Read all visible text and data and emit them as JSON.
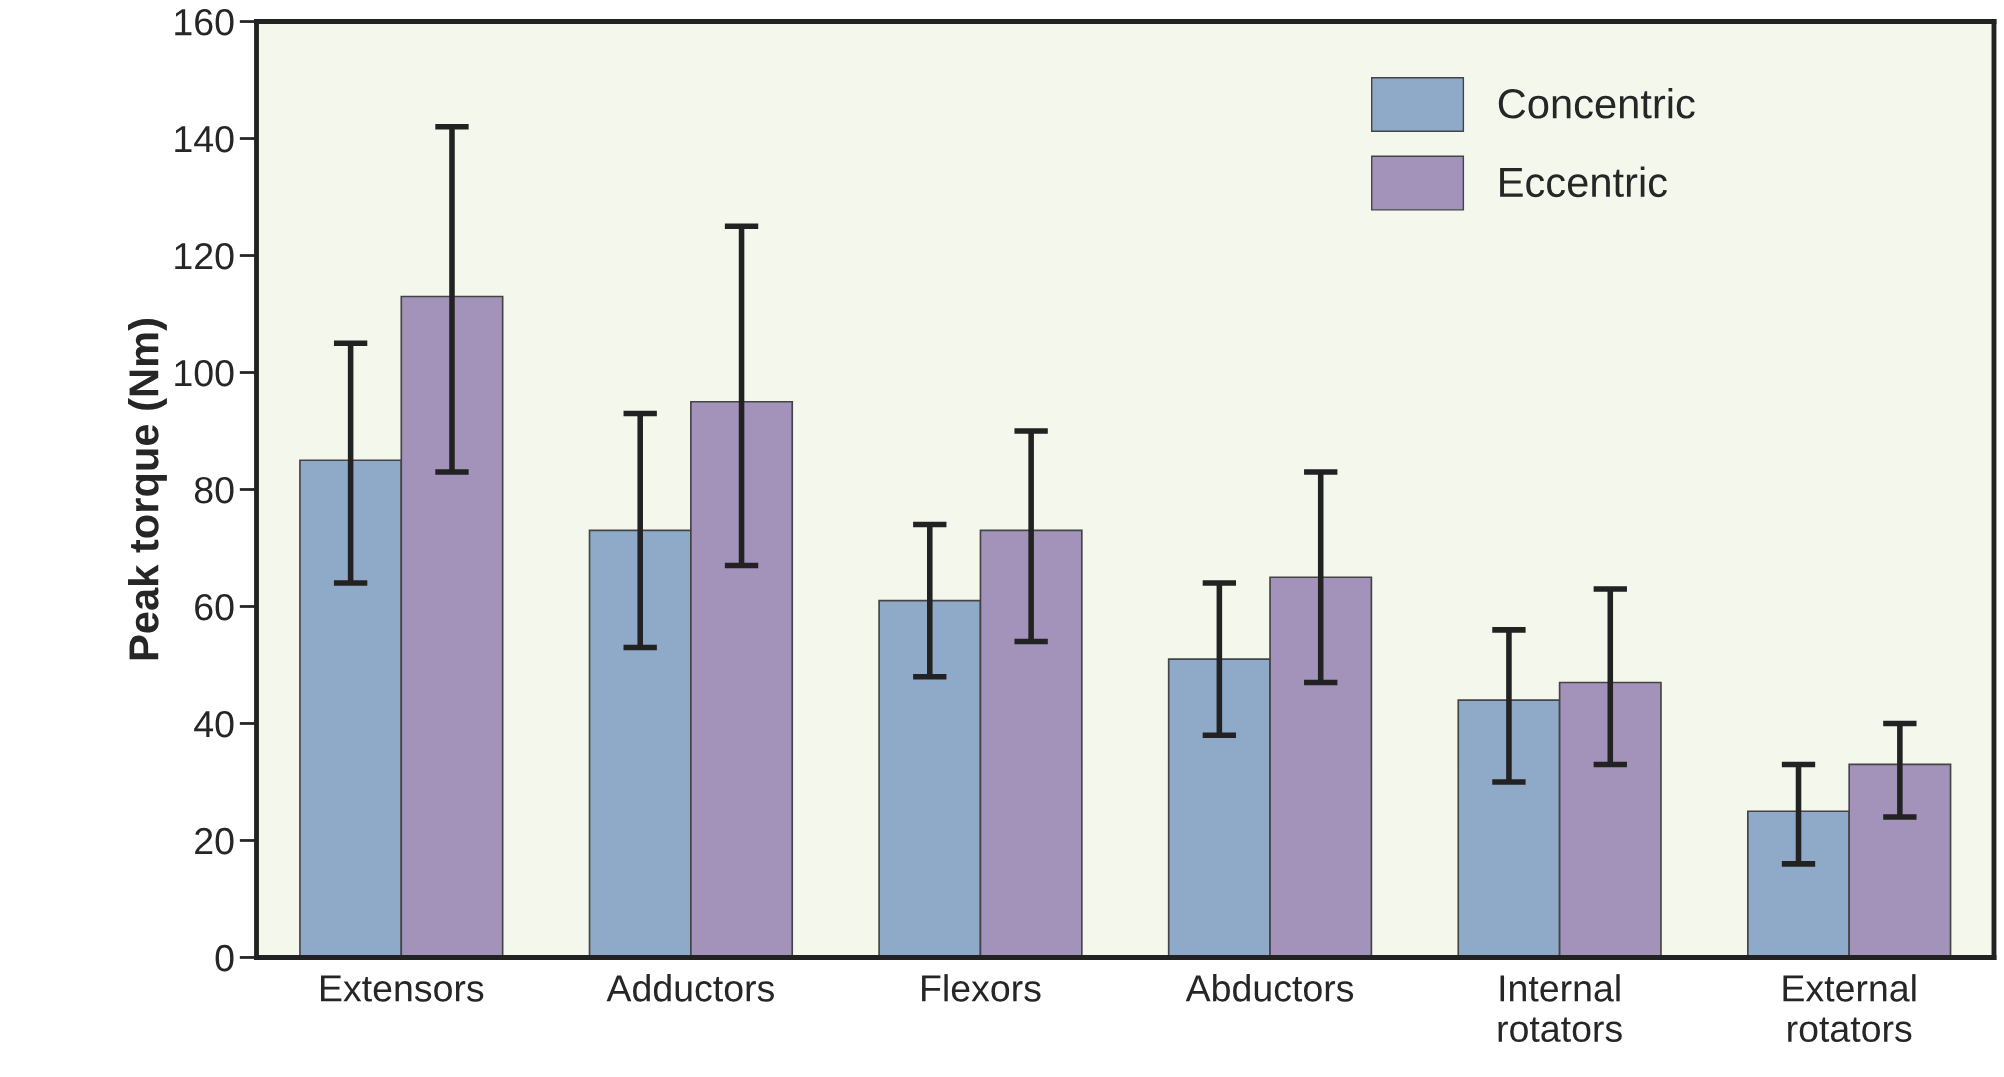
{
  "chart_data": {
    "type": "bar",
    "ylabel": "Peak torque (Nm)",
    "categories": [
      "Extensors",
      "Adductors",
      "Flexors",
      "Abductors",
      "Internal\nrotators",
      "External\nrotators"
    ],
    "series": [
      {
        "name": "Concentric",
        "color": "#8eaac8",
        "values": [
          85,
          73,
          61,
          51,
          44,
          25
        ],
        "errors": [
          [
            64,
            105
          ],
          [
            53,
            93
          ],
          [
            48,
            74
          ],
          [
            38,
            64
          ],
          [
            30,
            56
          ],
          [
            16,
            33
          ]
        ]
      },
      {
        "name": "Eccentric",
        "color": "#a393bb",
        "values": [
          113,
          95,
          73,
          65,
          47,
          33
        ],
        "errors": [
          [
            83,
            142
          ],
          [
            67,
            125
          ],
          [
            54,
            90
          ],
          [
            47,
            83
          ],
          [
            33,
            63
          ],
          [
            24,
            40
          ]
        ]
      }
    ],
    "ylim": [
      0,
      160
    ],
    "yticks": [
      0,
      20,
      40,
      60,
      80,
      100,
      120,
      140,
      160
    ],
    "grid": false,
    "legend": "top right"
  }
}
